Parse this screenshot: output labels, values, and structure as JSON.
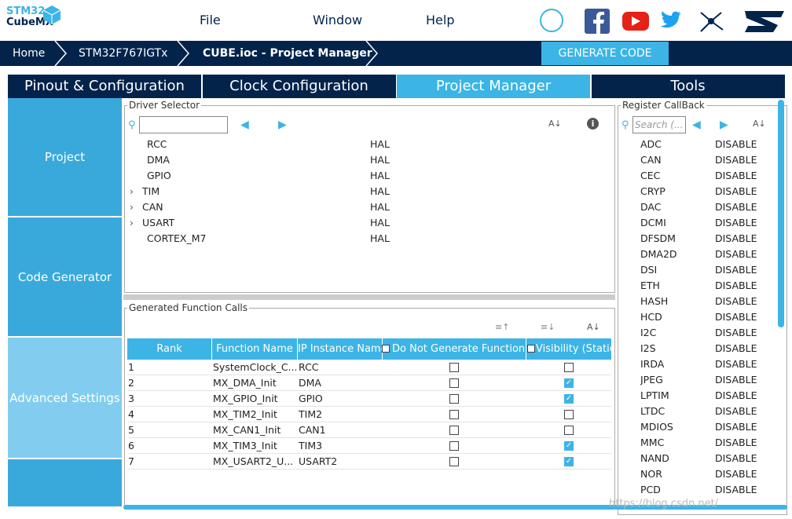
{
  "logo": {
    "line1": "STM32",
    "line2": "CubeMX"
  },
  "menu": [
    "File",
    "Window",
    "Help"
  ],
  "breadcrumb": [
    "Home",
    "STM32F767IGTx",
    "CUBE.ioc - Project Manager"
  ],
  "generate_button": "GENERATE CODE",
  "tabs": [
    "Pinout & Configuration",
    "Clock Configuration",
    "Project Manager",
    "Tools"
  ],
  "active_tab": 2,
  "sidebar": [
    "Project",
    "Code Generator",
    "Advanced Settings"
  ],
  "driver_selector": {
    "title": "Driver Selector",
    "rows": [
      {
        "name": "RCC",
        "mode": "HAL",
        "expandable": false
      },
      {
        "name": "DMA",
        "mode": "HAL",
        "expandable": false
      },
      {
        "name": "GPIO",
        "mode": "HAL",
        "expandable": false
      },
      {
        "name": "TIM",
        "mode": "HAL",
        "expandable": true
      },
      {
        "name": "CAN",
        "mode": "HAL",
        "expandable": true
      },
      {
        "name": "USART",
        "mode": "HAL",
        "expandable": true
      },
      {
        "name": "CORTEX_M7",
        "mode": "HAL",
        "expandable": false
      }
    ]
  },
  "generated_calls": {
    "title": "Generated Function Calls",
    "columns": [
      "Rank",
      "Function Name",
      "IP Instance Name",
      "Do Not Generate Function Ca",
      "Visibility (Static"
    ],
    "rows": [
      {
        "rank": "1",
        "function": "SystemClock_C...",
        "instance": "RCC",
        "no_generate": false,
        "visibility": false
      },
      {
        "rank": "2",
        "function": "MX_DMA_Init",
        "instance": "DMA",
        "no_generate": false,
        "visibility": true
      },
      {
        "rank": "3",
        "function": "MX_GPIO_Init",
        "instance": "GPIO",
        "no_generate": false,
        "visibility": true
      },
      {
        "rank": "4",
        "function": "MX_TIM2_Init",
        "instance": "TIM2",
        "no_generate": false,
        "visibility": false
      },
      {
        "rank": "5",
        "function": "MX_CAN1_Init",
        "instance": "CAN1",
        "no_generate": false,
        "visibility": false
      },
      {
        "rank": "6",
        "function": "MX_TIM3_Init",
        "instance": "TIM3",
        "no_generate": false,
        "visibility": true
      },
      {
        "rank": "7",
        "function": "MX_USART2_U...",
        "instance": "USART2",
        "no_generate": false,
        "visibility": true
      }
    ]
  },
  "register_callback": {
    "title": "Register CallBack",
    "search_placeholder": "Search (...",
    "rows": [
      [
        "ADC",
        "DISABLE"
      ],
      [
        "CAN",
        "DISABLE"
      ],
      [
        "CEC",
        "DISABLE"
      ],
      [
        "CRYP",
        "DISABLE"
      ],
      [
        "DAC",
        "DISABLE"
      ],
      [
        "DCMI",
        "DISABLE"
      ],
      [
        "DFSDM",
        "DISABLE"
      ],
      [
        "DMA2D",
        "DISABLE"
      ],
      [
        "DSI",
        "DISABLE"
      ],
      [
        "ETH",
        "DISABLE"
      ],
      [
        "HASH",
        "DISABLE"
      ],
      [
        "HCD",
        "DISABLE"
      ],
      [
        "I2C",
        "DISABLE"
      ],
      [
        "I2S",
        "DISABLE"
      ],
      [
        "IRDA",
        "DISABLE"
      ],
      [
        "JPEG",
        "DISABLE"
      ],
      [
        "LPTIM",
        "DISABLE"
      ],
      [
        "LTDC",
        "DISABLE"
      ],
      [
        "MDIOS",
        "DISABLE"
      ],
      [
        "MMC",
        "DISABLE"
      ],
      [
        "NAND",
        "DISABLE"
      ],
      [
        "NOR",
        "DISABLE"
      ],
      [
        "PCD",
        "DISABLE"
      ]
    ]
  },
  "watermark": "https://blog.csdn.net/"
}
